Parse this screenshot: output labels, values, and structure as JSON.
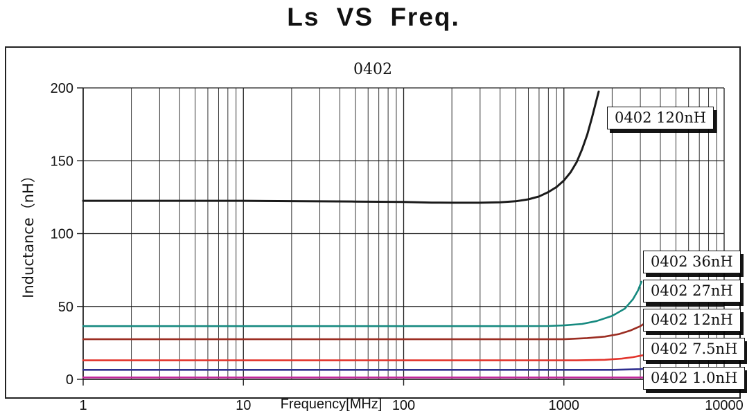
{
  "chart_data": {
    "type": "line",
    "title": "Ls VS Freq.",
    "subtitle": "0402",
    "xlabel": "Frequency[MHz]",
    "ylabel": "Inductance（nH）",
    "xscale": "log",
    "xlim": [
      1,
      10000
    ],
    "ylim": [
      0,
      200
    ],
    "xticks": [
      1,
      10,
      100,
      1000,
      10000
    ],
    "xtick_labels": [
      "1",
      "10",
      "100",
      "1000",
      "10000"
    ],
    "yticks": [
      0,
      50,
      100,
      150,
      200
    ],
    "ytick_labels": [
      "0",
      "50",
      "100",
      "150",
      "200"
    ],
    "grid": "major-y horizontal lines; log-x major and minor vertical lines",
    "legend_position": "boxed labels overlaid at right side of plot",
    "series": [
      {
        "name": "0402 120nH",
        "color": "#1a1a1a",
        "width": 3,
        "points": [
          [
            1,
            122.5
          ],
          [
            2,
            122.5
          ],
          [
            5,
            122.5
          ],
          [
            10,
            122.5
          ],
          [
            20,
            122.3
          ],
          [
            50,
            122.0
          ],
          [
            100,
            121.7
          ],
          [
            150,
            121.3
          ],
          [
            200,
            121.2
          ],
          [
            300,
            121.2
          ],
          [
            400,
            121.5
          ],
          [
            500,
            122.2
          ],
          [
            600,
            123.5
          ],
          [
            700,
            125.5
          ],
          [
            800,
            128.5
          ],
          [
            900,
            132.0
          ],
          [
            1000,
            136.5
          ],
          [
            1100,
            142.0
          ],
          [
            1200,
            149.0
          ],
          [
            1300,
            158.0
          ],
          [
            1400,
            168.0
          ],
          [
            1500,
            180.0
          ],
          [
            1600,
            192.0
          ],
          [
            1650,
            197.5
          ]
        ]
      },
      {
        "name": "0402 36nH",
        "color": "#15897f",
        "width": 2.6,
        "points": [
          [
            1,
            36.5
          ],
          [
            10,
            36.5
          ],
          [
            100,
            36.5
          ],
          [
            500,
            36.5
          ],
          [
            800,
            36.6
          ],
          [
            1000,
            37.0
          ],
          [
            1300,
            38.0
          ],
          [
            1600,
            40.0
          ],
          [
            2000,
            43.5
          ],
          [
            2400,
            48.5
          ],
          [
            2700,
            55.0
          ],
          [
            2900,
            61.0
          ],
          [
            3050,
            67.0
          ]
        ]
      },
      {
        "name": "0402 27nH",
        "color": "#9b2d22",
        "width": 2.6,
        "points": [
          [
            1,
            27.5
          ],
          [
            10,
            27.5
          ],
          [
            100,
            27.5
          ],
          [
            1000,
            27.5
          ],
          [
            1400,
            28.3
          ],
          [
            1800,
            29.3
          ],
          [
            2200,
            31.0
          ],
          [
            2600,
            33.5
          ],
          [
            3000,
            36.5
          ],
          [
            3150,
            38.0
          ]
        ]
      },
      {
        "name": "0402 12nH",
        "color": "#e2342c",
        "width": 2.6,
        "points": [
          [
            1,
            13.0
          ],
          [
            10,
            13.0
          ],
          [
            100,
            13.0
          ],
          [
            1200,
            13.0
          ],
          [
            1800,
            13.4
          ],
          [
            2300,
            14.2
          ],
          [
            2700,
            15.2
          ],
          [
            3100,
            16.5
          ]
        ]
      },
      {
        "name": "0402 7.5nH",
        "color": "#2f2f8f",
        "width": 2.6,
        "points": [
          [
            1,
            6.5
          ],
          [
            10,
            6.5
          ],
          [
            100,
            6.5
          ],
          [
            2000,
            6.5
          ],
          [
            3000,
            7.0
          ],
          [
            3200,
            7.3
          ]
        ]
      },
      {
        "name": "0402 1.0nH",
        "color": "#c4279c",
        "width": 2.6,
        "points": [
          [
            1,
            1.3
          ],
          [
            10,
            1.3
          ],
          [
            100,
            1.3
          ],
          [
            1000,
            1.3
          ],
          [
            3200,
            1.3
          ]
        ]
      }
    ]
  }
}
